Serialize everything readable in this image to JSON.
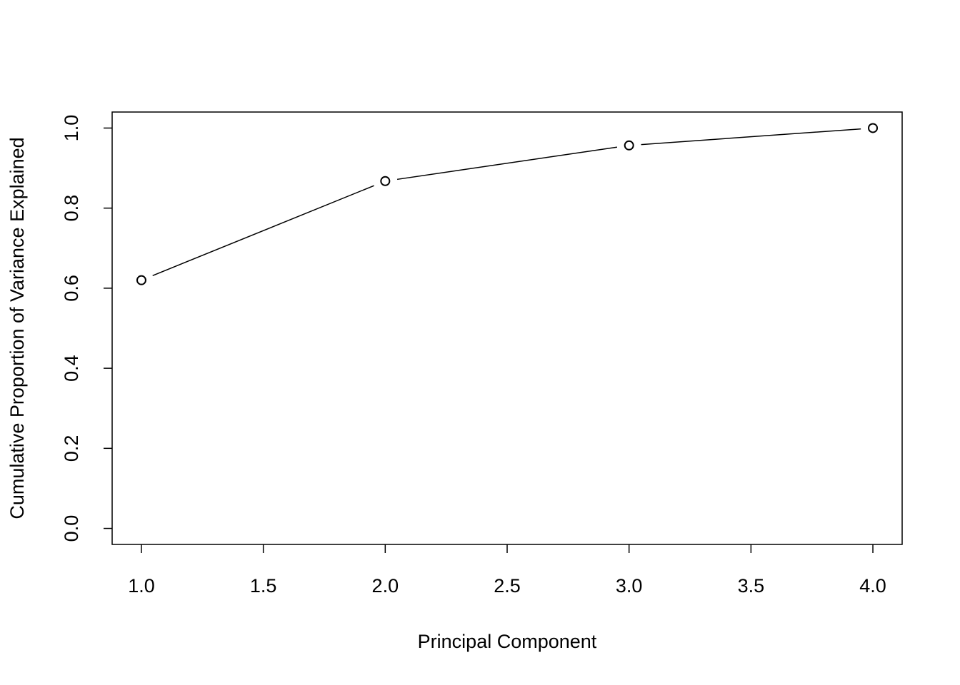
{
  "chart_data": {
    "type": "line",
    "x_label": "Principal Component",
    "y_label": "Cumulative Proportion of Variance Explained",
    "x": [
      1,
      2,
      3,
      4
    ],
    "series": [
      {
        "color": "#000000",
        "values": [
          0.62,
          0.8675,
          0.9566,
          1.0
        ]
      }
    ],
    "markers": true,
    "xlim": [
      0.88,
      4.12
    ],
    "ylim": [
      -0.04,
      1.04
    ],
    "xticks": [
      {
        "value": 1,
        "label": "1.0"
      },
      {
        "value": 1.5,
        "label": "1.5"
      },
      {
        "value": 2,
        "label": "2.0"
      },
      {
        "value": 2.5,
        "label": "2.5"
      },
      {
        "value": 3,
        "label": "3.0"
      },
      {
        "value": 3.5,
        "label": "3.5"
      },
      {
        "value": 4,
        "label": "4.0"
      }
    ],
    "yticks": [
      {
        "value": 0,
        "label": "0.0"
      },
      {
        "value": 0.2,
        "label": "0.2"
      },
      {
        "value": 0.4,
        "label": "0.4"
      },
      {
        "value": 0.6,
        "label": "0.6"
      },
      {
        "value": 0.8,
        "label": "0.8"
      },
      {
        "value": 1,
        "label": "1.0"
      }
    ],
    "grid": false
  }
}
